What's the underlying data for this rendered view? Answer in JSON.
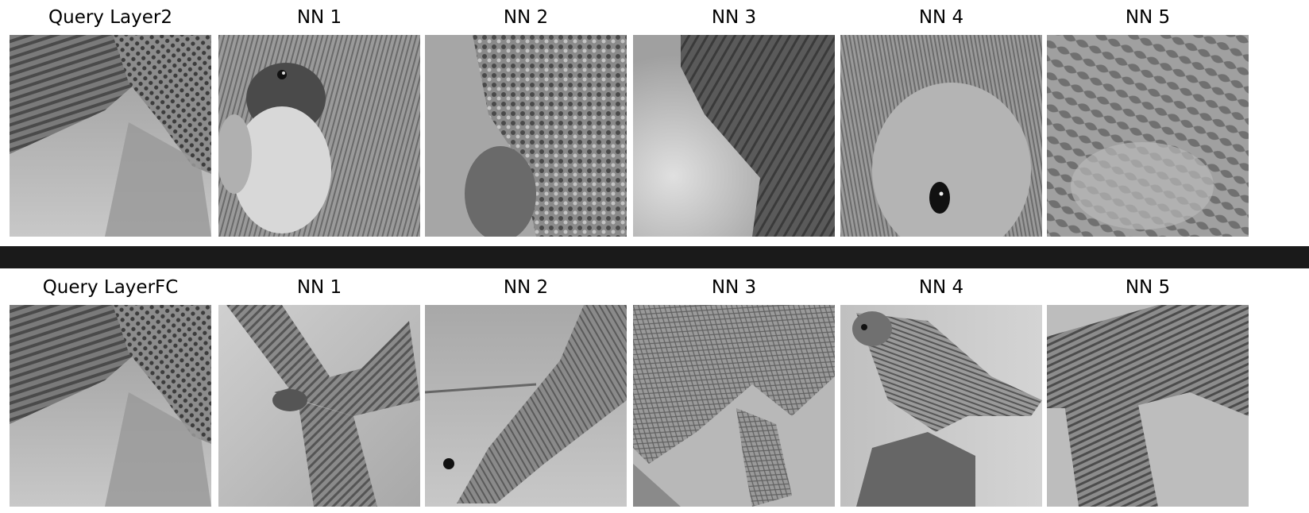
{
  "rows": [
    {
      "tiles": [
        {
          "title": "Query Layer2",
          "icon": "hawk-wing-closeup-image"
        },
        {
          "title": "NN 1",
          "icon": "dog-face-image"
        },
        {
          "title": "NN 2",
          "icon": "rodent-leaves-image"
        },
        {
          "title": "NN 3",
          "icon": "fur-texture-image"
        },
        {
          "title": "NN 4",
          "icon": "hamster-closeup-image"
        },
        {
          "title": "NN 5",
          "icon": "plant-texture-image"
        }
      ]
    },
    {
      "tiles": [
        {
          "title": "Query LayerFC",
          "icon": "hawk-wing-closeup-image"
        },
        {
          "title": "NN 1",
          "icon": "hawk-flying-image"
        },
        {
          "title": "NN 2",
          "icon": "hawk-perched-branch-image"
        },
        {
          "title": "NN 3",
          "icon": "snake-coiled-image"
        },
        {
          "title": "NN 4",
          "icon": "kestrel-perched-image"
        },
        {
          "title": "NN 5",
          "icon": "hawk-tail-closeup-image"
        }
      ]
    }
  ],
  "colors": {
    "separator": "#1a1a1a",
    "background": "#ffffff"
  }
}
